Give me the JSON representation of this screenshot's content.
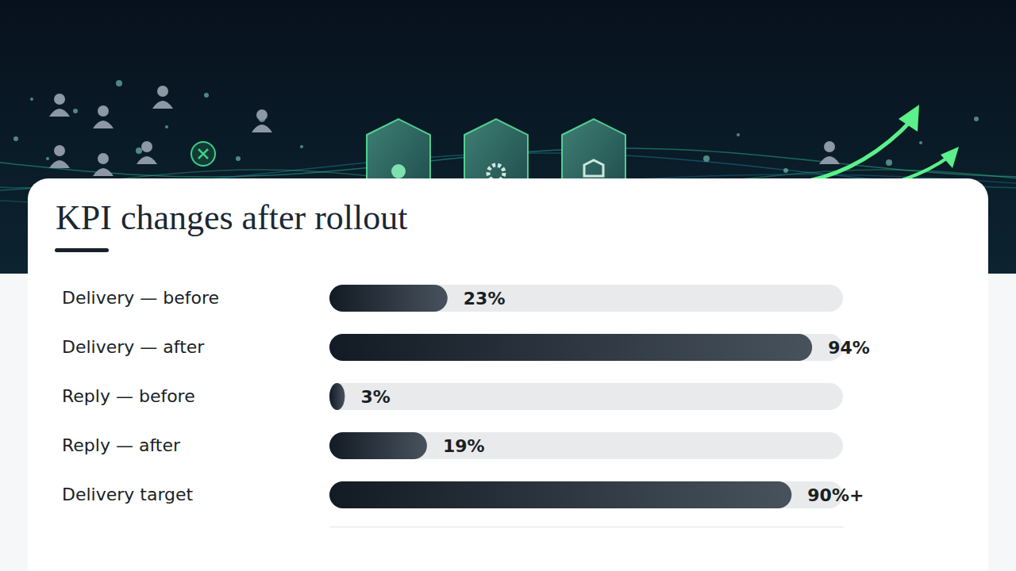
{
  "chart_data": {
    "type": "bar",
    "orientation": "horizontal",
    "title": "KPI changes after rollout",
    "categories": [
      "Delivery — before",
      "Delivery — after",
      "Reply — before",
      "Reply — after",
      "Delivery target"
    ],
    "values": [
      23,
      94,
      3,
      19,
      90
    ],
    "value_labels": [
      "23%",
      "94%",
      "3%",
      "19%",
      "90%+"
    ],
    "xlim": [
      0,
      100
    ],
    "color": "#121b24",
    "grid": false,
    "data_labels": true,
    "tick_labels": "y"
  }
}
